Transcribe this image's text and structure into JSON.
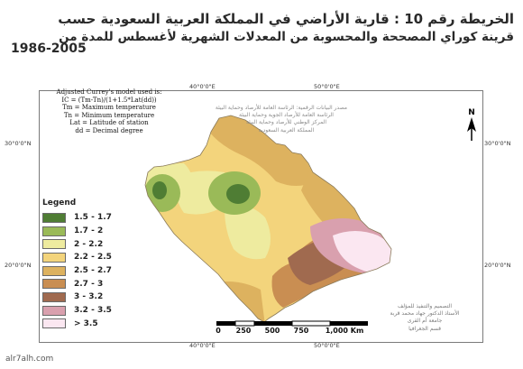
{
  "title": {
    "line1": "الخريطة رقم 10 : قارية الأراضي في المملكة العربية السعودية حسب",
    "line2": "قرينة كوراي المصححة والمحسوبة من المعدلات الشهرية لأغسطس للمدة من",
    "period": "1986-2005"
  },
  "map_frame": {
    "top_ticks": [
      "40°0'0\"E",
      "50°0'0\"E"
    ],
    "bottom_ticks": [
      "40°0'0\"E",
      "50°0'0\"E"
    ],
    "left_ticks": [
      "30°0'0\"N",
      "20°0'0\"N"
    ],
    "right_ticks": [
      "30°0'0\"N",
      "20°0'0\"N"
    ]
  },
  "model_box": {
    "lines": [
      "Adjusted Currey's model used is:",
      "IC = (Tm-Tn)/(1+1.5*Lat(dd))",
      "Tm = Maximum temperature",
      "Tn = Minimum temperature",
      "Lat = Latitude of station",
      "dd = Decimal degree"
    ]
  },
  "source_agencies": [
    "مصدر البيانات الرقمية: الرئاسة العامة للأرصاد وحماية البيئة",
    "الرئاسة العامة للأرصاد الجوية وحماية البيئة",
    "المركز الوطني للأرصاد وحماية البيئة",
    "المملكة العربية السعودية"
  ],
  "legend": {
    "title": "Legend",
    "items": [
      {
        "label": "1.5 - 1.7",
        "color": "#4f7d34"
      },
      {
        "label": "1.7 - 2",
        "color": "#9aba58"
      },
      {
        "label": "2 - 2.2",
        "color": "#eeeb9f"
      },
      {
        "label": "2.2 - 2.5",
        "color": "#f3d47c"
      },
      {
        "label": "2.5 - 2.7",
        "color": "#ddb25f"
      },
      {
        "label": "2.7 - 3",
        "color": "#c98e52"
      },
      {
        "label": "3 - 3.2",
        "color": "#a06a4f"
      },
      {
        "label": "3.2 - 3.5",
        "color": "#d9a0ae"
      },
      {
        "label": "> 3.5",
        "color": "#fbe7f1"
      }
    ]
  },
  "scale_bar": {
    "labels": [
      "0",
      "250",
      "500",
      "750",
      "1,000 Km"
    ]
  },
  "credits": [
    "التصميم والتنفيذ للمؤلف",
    "الأستاذ الدكتور جهاد محمد قربة",
    "جامعة أم القرى",
    "قسم الجغرافيا"
  ],
  "north_arrow": {
    "label": "N",
    "icon": "north-arrow-icon"
  },
  "watermark": "alr7alh.com"
}
